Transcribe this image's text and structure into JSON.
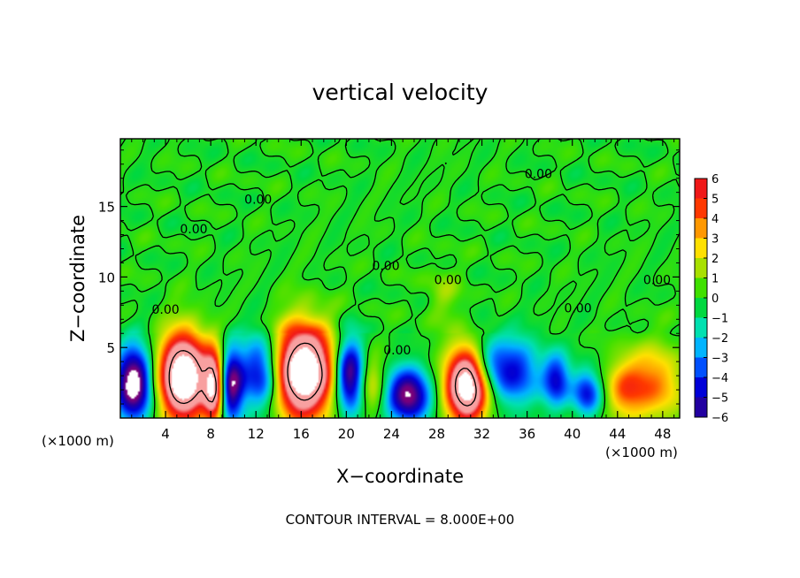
{
  "chart_data": {
    "type": "heatmap",
    "title": "vertical velocity",
    "xlabel": "X−coordinate",
    "ylabel": "Z−coordinate",
    "x_unit_left": "(×1000 m)",
    "x_unit_right": "(×1000 m)",
    "footer": "CONTOUR INTERVAL = 8.000E+00",
    "xlim": [
      0,
      49.5
    ],
    "ylim": [
      0,
      19.8
    ],
    "x_ticks": [
      4,
      8,
      12,
      16,
      20,
      24,
      28,
      32,
      36,
      40,
      44,
      48
    ],
    "y_ticks": [
      5,
      10,
      15
    ],
    "colorbar": {
      "ticks": [
        6,
        5,
        4,
        3,
        2,
        1,
        0,
        -1,
        -2,
        -3,
        -4,
        -5,
        -6
      ],
      "tick_labels": [
        "6",
        "5",
        "4",
        "3",
        "2",
        "1",
        "0",
        "−1",
        "−2",
        "−3",
        "−4",
        "−5",
        "−6"
      ],
      "range": [
        -6,
        6
      ]
    },
    "contour_labels": [
      {
        "text": "0.00",
        "x": 6.5,
        "y": 13.1
      },
      {
        "text": "0.00",
        "x": 12.2,
        "y": 15.2
      },
      {
        "text": "0.00",
        "x": 37.0,
        "y": 17.0
      },
      {
        "text": "0.00",
        "x": 23.5,
        "y": 10.5
      },
      {
        "text": "0.00",
        "x": 29.0,
        "y": 9.5
      },
      {
        "text": "0.00",
        "x": 40.5,
        "y": 7.5
      },
      {
        "text": "0.00",
        "x": 4.0,
        "y": 7.4
      },
      {
        "text": "0.00",
        "x": 24.5,
        "y": 4.5
      },
      {
        "text": "0.00",
        "x": 47.5,
        "y": 9.5
      }
    ],
    "features": [
      {
        "x": 5.6,
        "z": 2.9,
        "rx": 2.1,
        "rz": 3.0,
        "value": 12
      },
      {
        "x": 8.3,
        "z": 2.2,
        "rx": 0.9,
        "rz": 2.6,
        "value": 8
      },
      {
        "x": 16.2,
        "z": 3.3,
        "rx": 2.6,
        "rz": 3.2,
        "value": 12
      },
      {
        "x": 30.7,
        "z": 2.3,
        "rx": 1.9,
        "rz": 2.6,
        "value": 11
      },
      {
        "x": 47.0,
        "z": 2.4,
        "rx": 2.8,
        "rz": 2.6,
        "value": 4
      },
      {
        "x": 44.5,
        "z": 2.0,
        "rx": 1.6,
        "rz": 2.0,
        "value": 2.6
      },
      {
        "x": 22.2,
        "z": 2.4,
        "rx": 1.2,
        "rz": 2.0,
        "value": 2.6
      },
      {
        "x": 28.5,
        "z": 8.8,
        "rx": 1.5,
        "rz": 2.0,
        "value": 1.2
      },
      {
        "x": 1.2,
        "z": 2.4,
        "rx": 1.6,
        "rz": 2.6,
        "value": -8
      },
      {
        "x": 9.8,
        "z": 2.3,
        "rx": 1.1,
        "rz": 2.6,
        "value": -6.5
      },
      {
        "x": 12.5,
        "z": 3.2,
        "rx": 1.8,
        "rz": 2.6,
        "value": -5.5
      },
      {
        "x": 20.3,
        "z": 3.0,
        "rx": 1.3,
        "rz": 2.6,
        "value": -7
      },
      {
        "x": 25.5,
        "z": 1.6,
        "rx": 1.9,
        "rz": 1.9,
        "value": -7
      },
      {
        "x": 35.0,
        "z": 3.2,
        "rx": 2.2,
        "rz": 2.4,
        "value": -4.2
      },
      {
        "x": 38.6,
        "z": 2.7,
        "rx": 1.2,
        "rz": 1.9,
        "value": -4.4
      },
      {
        "x": 41.3,
        "z": 1.8,
        "rx": 1.3,
        "rz": 1.6,
        "value": -4.5
      },
      {
        "x": 32.5,
        "z": 3.8,
        "rx": 1.6,
        "rz": 2.0,
        "value": -3.2
      }
    ],
    "grid": false,
    "legend": "colorbar right"
  }
}
